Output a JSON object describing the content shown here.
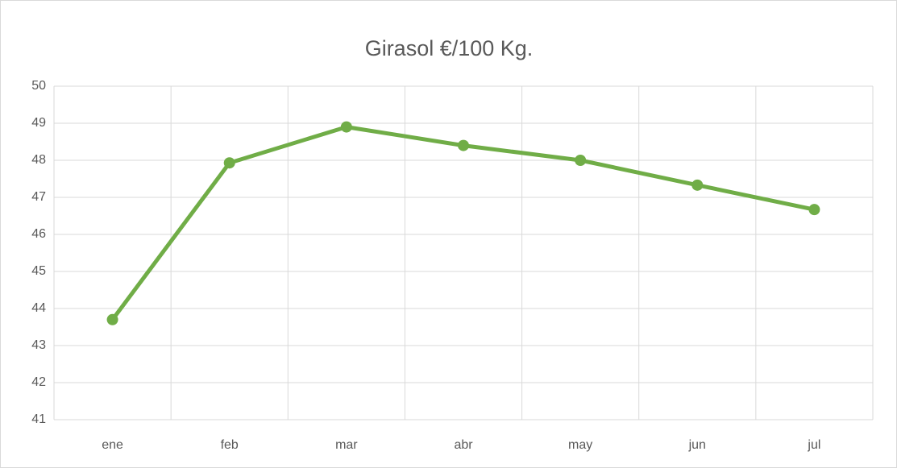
{
  "chart_data": {
    "type": "line",
    "title": "Girasol €/100 Kg.",
    "categories": [
      "ene",
      "feb",
      "mar",
      "abr",
      "may",
      "jun",
      "jul"
    ],
    "series": [
      {
        "name": "Girasol",
        "color": "#70ad47",
        "values": [
          43.7,
          47.93,
          48.9,
          48.4,
          48.0,
          47.33,
          46.67
        ]
      }
    ],
    "ylim": [
      41,
      50
    ],
    "yticks": [
      41,
      42,
      43,
      44,
      45,
      46,
      47,
      48,
      49,
      50
    ],
    "grid": true
  }
}
